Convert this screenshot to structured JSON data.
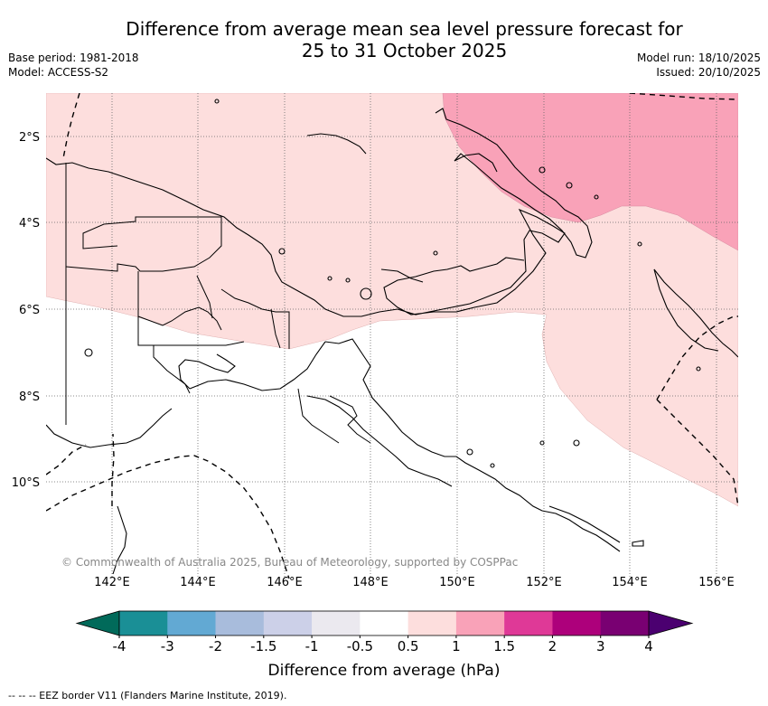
{
  "title": {
    "line1": "Difference from average mean sea level pressure forecast for",
    "line2": "25 to 31 October 2025"
  },
  "meta_left": {
    "base_period": "Base period: 1981-2018",
    "model": "Model: ACCESS-S2"
  },
  "meta_right": {
    "model_run": "Model run: 18/10/2025",
    "issued": "Issued: 20/10/2025"
  },
  "copyright": "© Commonwealth of Australia 2025, Bureau of Meteorology, supported by COSPPac",
  "lat_labels": [
    "2°S",
    "4°S",
    "6°S",
    "8°S",
    "10°S"
  ],
  "lon_labels": [
    "142°E",
    "144°E",
    "146°E",
    "148°E",
    "150°E",
    "152°E",
    "154°E",
    "156°E"
  ],
  "colorbar": {
    "label": "Difference from average (hPa)",
    "ticks": [
      "-4",
      "-3",
      "-2",
      "-1.5",
      "-1",
      "-0.5",
      "0.5",
      "1",
      "1.5",
      "2",
      "3",
      "4"
    ],
    "colors": [
      "#1a8f96",
      "#62a9d3",
      "#a8bcdc",
      "#ccd0e8",
      "#ebe9ef",
      "#ffffff",
      "#fddedd",
      "#f9a2b8",
      "#df3997",
      "#ad007b",
      "#790072"
    ],
    "under_color": "#016a5a",
    "over_color": "#4b0070"
  },
  "legend_note": "--  --  -- EEZ border V11 (Flanders Marine Institute, 2019).",
  "colors": {
    "anomaly_light": "#fddedd",
    "anomaly_medium": "#f9a2b8"
  }
}
